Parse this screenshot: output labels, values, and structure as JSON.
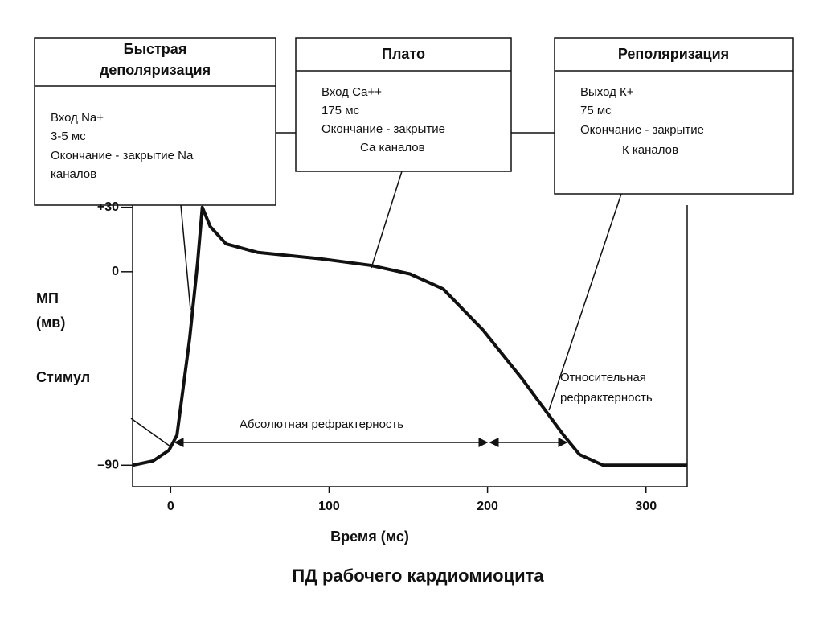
{
  "chart_data": {
    "type": "line",
    "title": "ПД рабочего кардиомиоцита",
    "xlabel": "Время (мс)",
    "ylabel": [
      "МП",
      "(мв)"
    ],
    "x": [
      -24,
      -11,
      -1,
      4,
      12,
      17,
      20,
      25,
      35,
      55,
      95,
      126,
      151,
      172,
      197,
      222,
      248,
      258,
      273,
      326
    ],
    "series": [
      {
        "color": "#111111",
        "values": [
          -90,
          -88,
          -83,
          -76,
          -31,
          4,
          30,
          21,
          13,
          9,
          6,
          3,
          -1,
          -8,
          -27,
          -50,
          -76,
          -85,
          -90,
          -90
        ]
      }
    ],
    "xlim": [
      -24,
      326
    ],
    "ylim": [
      -100,
      31
    ],
    "xticks": [
      0,
      100,
      200,
      300
    ],
    "yticks": [
      {
        "value": 30,
        "label": "+30"
      },
      0,
      {
        "value": -90,
        "label": "–90"
      }
    ],
    "annotations": {
      "stimulus": "Стимул",
      "absolute": "Абсолютная рефрактерность",
      "relative": [
        "Относительная",
        "рефрактерность"
      ]
    },
    "boxes": [
      {
        "title": [
          "Быстрая",
          "деполяризация"
        ],
        "lines": [
          "Вход Na+",
          "3-5 мс",
          "Окончание - закрытие Na",
          "каналов"
        ]
      },
      {
        "title": [
          "Плато"
        ],
        "lines": [
          "Вход Са++",
          "175 мс",
          "Окончание - закрытие",
          "Са  каналов"
        ]
      },
      {
        "title": [
          "Реполяризация"
        ],
        "lines": [
          "Выход К+",
          "75 мс",
          "Окончание - закрытие",
          "К  каналов"
        ]
      }
    ]
  }
}
